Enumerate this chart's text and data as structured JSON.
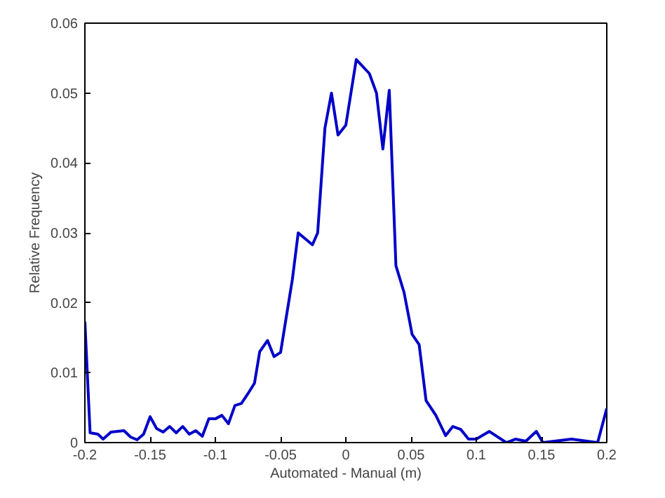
{
  "chart_data": {
    "type": "line",
    "xlabel": "Automated - Manual (m)",
    "ylabel": "Relative Frequency",
    "x": [
      -0.2,
      -0.196,
      -0.19,
      -0.186,
      -0.18,
      -0.17,
      -0.165,
      -0.16,
      -0.155,
      -0.15,
      -0.145,
      -0.14,
      -0.135,
      -0.13,
      -0.125,
      -0.12,
      -0.115,
      -0.11,
      -0.105,
      -0.1,
      -0.095,
      -0.09,
      -0.085,
      -0.08,
      -0.075,
      -0.07,
      -0.066,
      -0.06,
      -0.055,
      -0.05,
      -0.045,
      -0.041,
      -0.0365,
      -0.0256,
      -0.0216,
      -0.016,
      -0.011,
      -0.006,
      0.0,
      0.008,
      0.018,
      0.0235,
      0.0284,
      0.0333,
      0.0384,
      0.0446,
      0.0508,
      0.0562,
      0.0615,
      0.069,
      0.0765,
      0.082,
      0.088,
      0.094,
      0.1,
      0.11,
      0.123,
      0.13,
      0.138,
      0.146,
      0.151,
      0.173,
      0.193,
      0.2
    ],
    "series": [
      {
        "color": "#0000c8",
        "values": [
          0.0173,
          0.0014,
          0.0012,
          0.0005,
          0.0015,
          0.0017,
          0.0008,
          0.0004,
          0.0012,
          0.0037,
          0.002,
          0.0015,
          0.0023,
          0.0014,
          0.0023,
          0.0012,
          0.0017,
          0.0009,
          0.0034,
          0.0034,
          0.0039,
          0.0027,
          0.0053,
          0.0056,
          0.007,
          0.0085,
          0.013,
          0.0146,
          0.0123,
          0.0129,
          0.0187,
          0.0233,
          0.03,
          0.0283,
          0.03,
          0.045,
          0.05,
          0.044,
          0.0454,
          0.0548,
          0.0528,
          0.05,
          0.042,
          0.0504,
          0.0253,
          0.0215,
          0.0155,
          0.014,
          0.006,
          0.0039,
          0.001,
          0.0023,
          0.0019,
          0.0005,
          0.0005,
          0.0016,
          0.0,
          0.0005,
          0.0002,
          0.0016,
          0.0,
          0.0005,
          0.0,
          0.0049
        ]
      }
    ],
    "xlim": [
      -0.2,
      0.2
    ],
    "ylim": [
      0,
      0.06
    ],
    "xticks": [
      {
        "value": -0.2,
        "label": "-0.2"
      },
      {
        "value": -0.15,
        "label": "-0.15"
      },
      {
        "value": -0.1,
        "label": "-0.1"
      },
      {
        "value": -0.05,
        "label": "-0.05"
      },
      0,
      0.05,
      0.1,
      0.15,
      0.2
    ],
    "yticks": [
      0,
      0.01,
      0.02,
      0.03,
      0.04,
      0.05,
      0.06
    ],
    "grid": false,
    "marker": "none",
    "line_style": "solid"
  }
}
